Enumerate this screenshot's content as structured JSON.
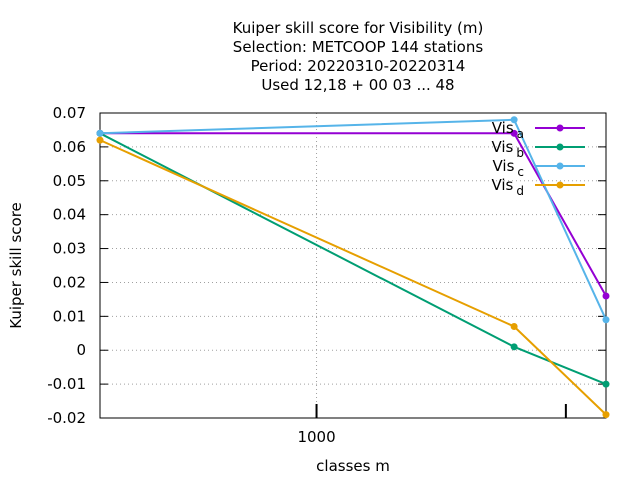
{
  "chart_data": {
    "type": "line",
    "title_lines": [
      "Kuiper skill score  for Visibility (m)",
      "Selection: METCOOP    144 stations",
      "Period: 20220310-20220314",
      "Used  12,18 + 00 03 ... 48"
    ],
    "xlabel": "classes m",
    "ylabel": "Kuiper skill score",
    "x_scale": "log",
    "x_ticks": [
      {
        "value": 1000,
        "label": "1000"
      }
    ],
    "x_minor_ticks": [
      1000,
      4000
    ],
    "xlim": [
      300,
      5000
    ],
    "x": [
      300,
      3000,
      5000
    ],
    "ylim": [
      -0.02,
      0.07
    ],
    "y_ticks": [
      {
        "value": 0.07,
        "label": "0.07"
      },
      {
        "value": 0.06,
        "label": "0.06"
      },
      {
        "value": 0.05,
        "label": "0.05"
      },
      {
        "value": 0.04,
        "label": "0.04"
      },
      {
        "value": 0.03,
        "label": "0.03"
      },
      {
        "value": 0.02,
        "label": "0.02"
      },
      {
        "value": 0.01,
        "label": "0.01"
      },
      {
        "value": 0,
        "label": "0"
      },
      {
        "value": -0.01,
        "label": "-0.01"
      },
      {
        "value": -0.02,
        "label": "-0.02"
      }
    ],
    "grid": true,
    "legend_position": "top-right",
    "series": [
      {
        "name": "Vis",
        "subscript": "a",
        "color": "#9400d3",
        "values": [
          0.064,
          0.064,
          0.016
        ]
      },
      {
        "name": "Vis",
        "subscript": "b",
        "color": "#009e73",
        "values": [
          0.064,
          0.001,
          -0.01
        ]
      },
      {
        "name": "Vis",
        "subscript": "c",
        "color": "#56b4e9",
        "values": [
          0.064,
          0.068,
          0.009
        ]
      },
      {
        "name": "Vis",
        "subscript": "d",
        "color": "#e69f00",
        "values": [
          0.062,
          0.007,
          -0.019
        ]
      }
    ]
  }
}
